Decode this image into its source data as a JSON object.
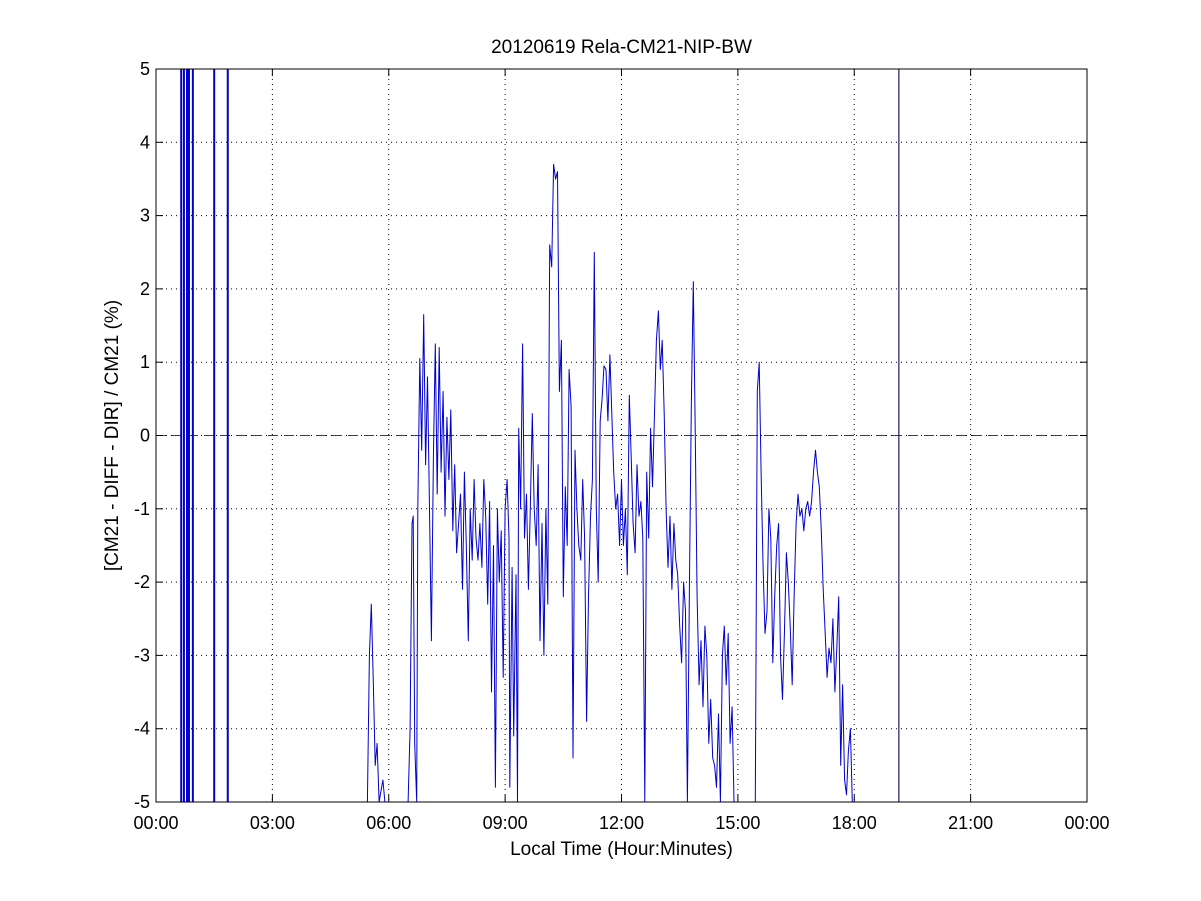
{
  "chart_data": {
    "type": "line",
    "title": "20120619 Rela-CM21-NIP-BW",
    "xlabel": "Local Time (Hour:Minutes)",
    "ylabel": "[CM21 - DIFF - DIR] / CM21 (%)",
    "xlim": [
      0,
      24
    ],
    "ylim": [
      -5,
      5
    ],
    "x_unit": "hours",
    "x_ticks": [
      0,
      3,
      6,
      9,
      12,
      15,
      18,
      21,
      24
    ],
    "x_tick_labels": [
      "00:00",
      "03:00",
      "06:00",
      "09:00",
      "12:00",
      "15:00",
      "18:00",
      "21:00",
      "00:00"
    ],
    "y_ticks": [
      -5,
      -4,
      -3,
      -2,
      -1,
      0,
      1,
      2,
      3,
      4,
      5
    ],
    "y_tick_labels": [
      "-5",
      "-4",
      "-3",
      "-2",
      "-1",
      "0",
      "1",
      "2",
      "3",
      "4",
      "5"
    ],
    "grid": true,
    "reference_line": {
      "y": 0,
      "color": "#cc0000",
      "style": "dashed"
    },
    "colors": {
      "series": "#0000cc",
      "reference": "#cc0000",
      "grid": "#000000"
    },
    "vertical_spikes": [
      0.65,
      0.72,
      0.8,
      0.85,
      0.95,
      1.5,
      1.85
    ],
    "marker_line_x": 19.15,
    "series": [
      {
        "values": [
          [
            5.45,
            -5
          ],
          [
            5.5,
            -3.0
          ],
          [
            5.55,
            -2.3
          ],
          [
            5.6,
            -3.3
          ],
          [
            5.65,
            -4.5
          ],
          [
            5.7,
            -4.2
          ],
          [
            5.75,
            -5
          ],
          [
            5.85,
            -4.7
          ],
          [
            5.9,
            -5
          ],
          [
            6.5,
            -5
          ],
          [
            6.55,
            -4.0
          ],
          [
            6.6,
            -1.2
          ],
          [
            6.63,
            -1.1
          ],
          [
            6.67,
            -4.2
          ],
          [
            6.72,
            -5
          ],
          [
            6.75,
            -1.0
          ],
          [
            6.8,
            1.05
          ],
          [
            6.85,
            -0.2
          ],
          [
            6.9,
            1.65
          ],
          [
            6.95,
            -0.4
          ],
          [
            7.0,
            0.8
          ],
          [
            7.05,
            -1.0
          ],
          [
            7.1,
            -2.8
          ],
          [
            7.15,
            -0.3
          ],
          [
            7.2,
            1.25
          ],
          [
            7.25,
            -0.8
          ],
          [
            7.3,
            1.2
          ],
          [
            7.35,
            -0.5
          ],
          [
            7.4,
            0.6
          ],
          [
            7.45,
            -1.1
          ],
          [
            7.5,
            0.25
          ],
          [
            7.55,
            -0.6
          ],
          [
            7.6,
            0.35
          ],
          [
            7.65,
            -1.3
          ],
          [
            7.7,
            -0.4
          ],
          [
            7.75,
            -1.6
          ],
          [
            7.8,
            -1.2
          ],
          [
            7.85,
            -0.8
          ],
          [
            7.9,
            -2.1
          ],
          [
            7.95,
            -0.5
          ],
          [
            8.0,
            -1.5
          ],
          [
            8.05,
            -2.8
          ],
          [
            8.1,
            -1.0
          ],
          [
            8.15,
            -1.7
          ],
          [
            8.2,
            -0.6
          ],
          [
            8.25,
            -1.4
          ],
          [
            8.3,
            -1.7
          ],
          [
            8.35,
            -1.2
          ],
          [
            8.4,
            -1.8
          ],
          [
            8.45,
            -0.6
          ],
          [
            8.5,
            -1.1
          ],
          [
            8.55,
            -2.3
          ],
          [
            8.6,
            -0.9
          ],
          [
            8.65,
            -3.5
          ],
          [
            8.7,
            -1.5
          ],
          [
            8.75,
            -4.8
          ],
          [
            8.8,
            -1.0
          ],
          [
            8.85,
            -2.0
          ],
          [
            8.9,
            -1.3
          ],
          [
            8.95,
            -3.3
          ],
          [
            9.0,
            -1.0
          ],
          [
            9.05,
            -0.6
          ],
          [
            9.1,
            -1.4
          ],
          [
            9.12,
            -4.8
          ],
          [
            9.18,
            -1.8
          ],
          [
            9.22,
            -4.1
          ],
          [
            9.28,
            -1.9
          ],
          [
            9.32,
            -5
          ],
          [
            9.35,
            0.1
          ],
          [
            9.4,
            -1.0
          ],
          [
            9.45,
            1.25
          ],
          [
            9.5,
            -1.4
          ],
          [
            9.55,
            -0.8
          ],
          [
            9.6,
            -2.1
          ],
          [
            9.65,
            -1.0
          ],
          [
            9.7,
            0.3
          ],
          [
            9.75,
            -1.0
          ],
          [
            9.8,
            -1.5
          ],
          [
            9.85,
            -0.4
          ],
          [
            9.9,
            -2.8
          ],
          [
            9.95,
            -1.2
          ],
          [
            10.0,
            -3.0
          ],
          [
            10.05,
            -1.0
          ],
          [
            10.1,
            -2.3
          ],
          [
            10.15,
            2.6
          ],
          [
            10.2,
            2.3
          ],
          [
            10.25,
            3.7
          ],
          [
            10.3,
            3.5
          ],
          [
            10.35,
            3.6
          ],
          [
            10.4,
            0.6
          ],
          [
            10.45,
            1.3
          ],
          [
            10.5,
            -2.2
          ],
          [
            10.55,
            -0.7
          ],
          [
            10.6,
            -1.5
          ],
          [
            10.65,
            0.9
          ],
          [
            10.7,
            0.4
          ],
          [
            10.75,
            -4.4
          ],
          [
            10.8,
            -0.2
          ],
          [
            10.85,
            -1.0
          ],
          [
            10.9,
            -1.5
          ],
          [
            10.95,
            -1.7
          ],
          [
            11.0,
            -0.6
          ],
          [
            11.05,
            -1.4
          ],
          [
            11.1,
            -3.9
          ],
          [
            11.15,
            -2.2
          ],
          [
            11.2,
            -1.1
          ],
          [
            11.25,
            -0.6
          ],
          [
            11.3,
            2.5
          ],
          [
            11.35,
            -1.0
          ],
          [
            11.4,
            -2.0
          ],
          [
            11.45,
            0.2
          ],
          [
            11.5,
            0.5
          ],
          [
            11.55,
            0.95
          ],
          [
            11.6,
            0.9
          ],
          [
            11.65,
            0.2
          ],
          [
            11.7,
            1.1
          ],
          [
            11.75,
            0.3
          ],
          [
            11.8,
            -0.5
          ],
          [
            11.85,
            -1.0
          ],
          [
            11.9,
            -0.8
          ],
          [
            11.95,
            -1.5
          ],
          [
            12.0,
            -0.6
          ],
          [
            12.05,
            -1.5
          ],
          [
            12.1,
            -1.0
          ],
          [
            12.15,
            -1.9
          ],
          [
            12.2,
            0.55
          ],
          [
            12.25,
            -0.3
          ],
          [
            12.3,
            -1.2
          ],
          [
            12.35,
            -1.6
          ],
          [
            12.4,
            -0.4
          ],
          [
            12.45,
            -1.1
          ],
          [
            12.5,
            -0.9
          ],
          [
            12.55,
            -1.4
          ],
          [
            12.6,
            -5
          ],
          [
            12.65,
            -0.5
          ],
          [
            12.7,
            -1.4
          ],
          [
            12.75,
            0.1
          ],
          [
            12.8,
            -0.7
          ],
          [
            12.85,
            0.3
          ],
          [
            12.9,
            1.3
          ],
          [
            12.95,
            1.7
          ],
          [
            13.0,
            0.9
          ],
          [
            13.05,
            1.3
          ],
          [
            13.1,
            0.3
          ],
          [
            13.15,
            -1.0
          ],
          [
            13.2,
            -1.8
          ],
          [
            13.25,
            -1.1
          ],
          [
            13.3,
            -2.1
          ],
          [
            13.35,
            -1.2
          ],
          [
            13.4,
            -1.7
          ],
          [
            13.45,
            -1.9
          ],
          [
            13.5,
            -2.6
          ],
          [
            13.55,
            -3.1
          ],
          [
            13.6,
            -2.0
          ],
          [
            13.65,
            -2.4
          ],
          [
            13.7,
            -5
          ],
          [
            13.75,
            -2.1
          ],
          [
            13.8,
            0.4
          ],
          [
            13.85,
            2.1
          ],
          [
            13.9,
            0.1
          ],
          [
            13.95,
            -2.2
          ],
          [
            14.0,
            -3.4
          ],
          [
            14.05,
            -2.8
          ],
          [
            14.1,
            -3.7
          ],
          [
            14.15,
            -2.6
          ],
          [
            14.2,
            -3.0
          ],
          [
            14.25,
            -4.2
          ],
          [
            14.3,
            -3.6
          ],
          [
            14.35,
            -4.4
          ],
          [
            14.4,
            -4.5
          ],
          [
            14.45,
            -4.8
          ],
          [
            14.5,
            -3.8
          ],
          [
            14.55,
            -5
          ],
          [
            14.6,
            -3.0
          ],
          [
            14.65,
            -2.6
          ],
          [
            14.7,
            -3.4
          ],
          [
            14.75,
            -2.7
          ],
          [
            14.8,
            -4.2
          ],
          [
            14.85,
            -3.7
          ],
          [
            14.9,
            -5
          ],
          [
            15.0,
            -5
          ],
          [
            15.45,
            -5
          ],
          [
            15.5,
            0.6
          ],
          [
            15.55,
            1.0
          ],
          [
            15.6,
            -0.5
          ],
          [
            15.65,
            -1.8
          ],
          [
            15.7,
            -2.7
          ],
          [
            15.75,
            -2.4
          ],
          [
            15.8,
            -1.0
          ],
          [
            15.85,
            -1.4
          ],
          [
            15.9,
            -3.1
          ],
          [
            15.95,
            -2.2
          ],
          [
            16.0,
            -1.5
          ],
          [
            16.05,
            -1.2
          ],
          [
            16.1,
            -3.0
          ],
          [
            16.15,
            -3.6
          ],
          [
            16.2,
            -2.7
          ],
          [
            16.25,
            -1.6
          ],
          [
            16.3,
            -2.0
          ],
          [
            16.35,
            -2.6
          ],
          [
            16.4,
            -3.4
          ],
          [
            16.45,
            -2.2
          ],
          [
            16.5,
            -1.2
          ],
          [
            16.55,
            -0.8
          ],
          [
            16.6,
            -1.1
          ],
          [
            16.65,
            -1.0
          ],
          [
            16.7,
            -1.3
          ],
          [
            16.75,
            -1.0
          ],
          [
            16.8,
            -0.9
          ],
          [
            16.85,
            -1.1
          ],
          [
            16.9,
            -0.9
          ],
          [
            16.95,
            -0.5
          ],
          [
            17.0,
            -0.2
          ],
          [
            17.05,
            -0.5
          ],
          [
            17.1,
            -0.7
          ],
          [
            17.15,
            -1.3
          ],
          [
            17.2,
            -2.1
          ],
          [
            17.25,
            -2.7
          ],
          [
            17.3,
            -3.3
          ],
          [
            17.35,
            -2.9
          ],
          [
            17.4,
            -3.1
          ],
          [
            17.45,
            -2.5
          ],
          [
            17.5,
            -3.5
          ],
          [
            17.55,
            -2.9
          ],
          [
            17.6,
            -2.2
          ],
          [
            17.65,
            -4.5
          ],
          [
            17.7,
            -3.4
          ],
          [
            17.75,
            -4.7
          ],
          [
            17.8,
            -4.9
          ],
          [
            17.85,
            -4.3
          ],
          [
            17.9,
            -4.0
          ],
          [
            17.95,
            -5
          ]
        ]
      }
    ]
  }
}
